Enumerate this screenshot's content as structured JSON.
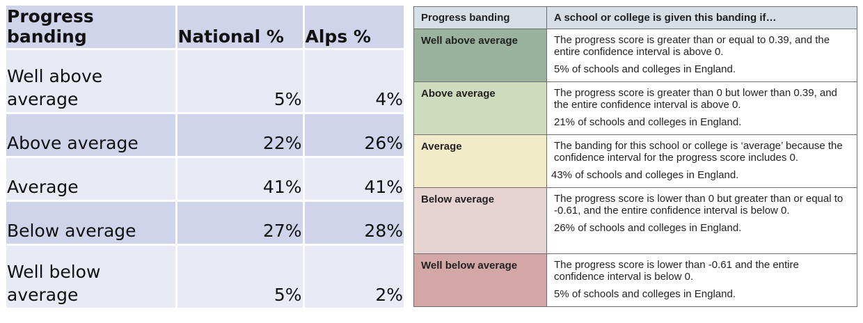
{
  "left_table": {
    "headers": [
      "Progress banding",
      "National %",
      "Alps %"
    ],
    "rows": [
      {
        "band": "Well above average",
        "national": "5%",
        "alps": "4%"
      },
      {
        "band": "Above average",
        "national": "22%",
        "alps": "26%"
      },
      {
        "band": "Average",
        "national": "41%",
        "alps": "41%"
      },
      {
        "band": "Below average",
        "national": "27%",
        "alps": "28%"
      },
      {
        "band": "Well below average",
        "national": "5%",
        "alps": "2%"
      }
    ]
  },
  "right_table": {
    "headers": [
      "Progress banding",
      "A school or college is given this banding if…"
    ],
    "rows": [
      {
        "band": "Well above average",
        "color": "#99b39f",
        "criteria": "The progress score is greater than or equal to 0.39, and the entire confidence interval is above 0.",
        "share": "5% of schools and colleges in England."
      },
      {
        "band": "Above average",
        "color": "#cfdbbd",
        "criteria": "The progress score is greater than 0 but lower than 0.39, and the entire confidence interval is above 0.",
        "share": "21% of schools and colleges in England."
      },
      {
        "band": "Average",
        "color": "#f2ebca",
        "criteria": "The banding for this school or college is ‘average’ because the confidence interval for the progress score includes 0.",
        "share": "43% of schools and colleges in England."
      },
      {
        "band": "Below average",
        "color": "#e8d3d3",
        "criteria": "The progress score is lower than 0 but greater than or equal to -0.61, and the entire confidence interval is below 0.",
        "share": "26% of schools and colleges in England."
      },
      {
        "band": "Well below average",
        "color": "#d4a7a7",
        "criteria": "The progress score is lower than -0.61 and the entire confidence interval is below 0.",
        "share": "5% of schools and colleges in England."
      }
    ]
  }
}
